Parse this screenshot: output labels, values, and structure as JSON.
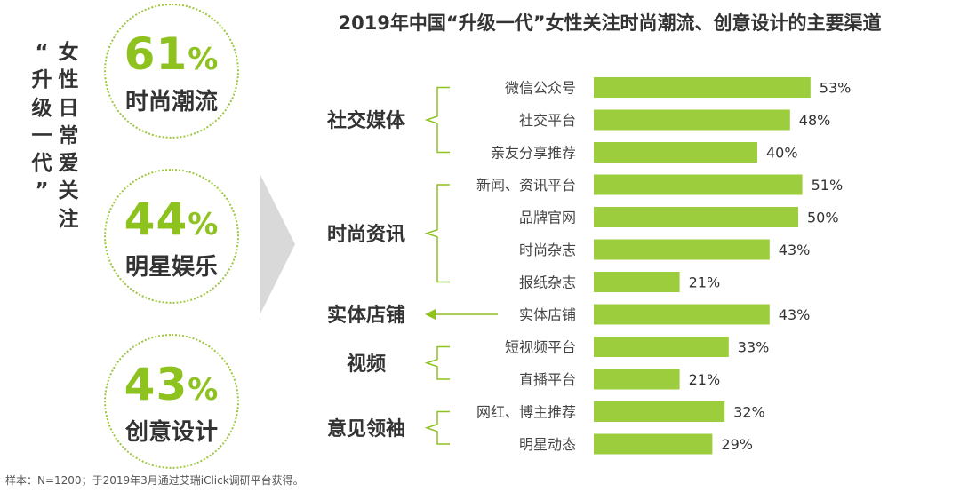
{
  "side_title": {
    "chars": [
      "“",
      "升",
      "级",
      "一",
      "代",
      "”",
      "女",
      "性",
      "日",
      "常",
      "爱",
      "关",
      "注"
    ]
  },
  "highlights": [
    {
      "value": "61",
      "unit": "%",
      "label": "时尚潮流"
    },
    {
      "value": "44",
      "unit": "%",
      "label": "明星娱乐"
    },
    {
      "value": "43",
      "unit": "%",
      "label": "创意设计"
    }
  ],
  "footnote": "样本：N=1200；于2019年3月通过艾瑞iClick调研平台获得。",
  "colors": {
    "bar": "#9ccd3c",
    "accent": "#8dc21f",
    "arrow_gray": "#d9d9d9",
    "text": "#333333"
  },
  "chart_data": {
    "type": "bar",
    "orientation": "horizontal",
    "title": "2019年中国“升级一代”女性关注时尚潮流、创意设计的主要渠道",
    "categories": [
      "微信公众号",
      "社交平台",
      "亲友分享推荐",
      "新闻、资讯平台",
      "品牌官网",
      "时尚杂志",
      "报纸杂志",
      "实体店铺",
      "短视频平台",
      "直播平台",
      "网红、博主推荐",
      "明星动态"
    ],
    "values": [
      53,
      48,
      40,
      51,
      50,
      43,
      21,
      43,
      33,
      21,
      32,
      29
    ],
    "value_labels": [
      "53%",
      "48%",
      "40%",
      "51%",
      "50%",
      "43%",
      "21%",
      "43%",
      "33%",
      "21%",
      "32%",
      "29%"
    ],
    "value_unit": "%",
    "groups": [
      {
        "name": "社交媒体",
        "start": 0,
        "end": 2,
        "connector": "bracket"
      },
      {
        "name": "时尚资讯",
        "start": 3,
        "end": 6,
        "connector": "bracket"
      },
      {
        "name": "实体店铺",
        "start": 7,
        "end": 7,
        "connector": "arrow"
      },
      {
        "name": "视频",
        "start": 8,
        "end": 9,
        "connector": "bracket"
      },
      {
        "name": "意见领袖",
        "start": 10,
        "end": 11,
        "connector": "bracket"
      }
    ],
    "xlim": [
      0,
      100
    ],
    "grid": false,
    "legend": "none"
  }
}
